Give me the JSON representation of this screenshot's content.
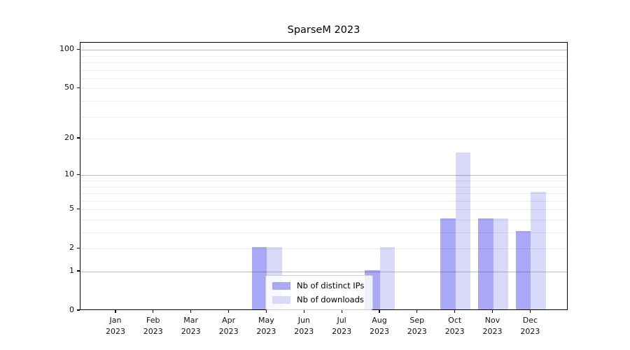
{
  "title": "SparseM 2023",
  "chart_data": {
    "type": "bar",
    "title": "SparseM 2023",
    "categories": [
      "Jan 2023",
      "Feb 2023",
      "Mar 2023",
      "Apr 2023",
      "May 2023",
      "Jun 2023",
      "Jul 2023",
      "Aug 2023",
      "Sep 2023",
      "Oct 2023",
      "Nov 2023",
      "Dec 2023"
    ],
    "series": [
      {
        "name": "Nb of distinct IPs",
        "color": "#a9a9f7",
        "values": [
          0,
          0,
          0,
          0,
          2,
          0,
          0,
          1,
          0,
          4,
          4,
          3
        ]
      },
      {
        "name": "Nb of downloads",
        "color": "#d9d9f9",
        "values": [
          0,
          0,
          0,
          0,
          2,
          0,
          0,
          2,
          0,
          15,
          4,
          7
        ]
      }
    ],
    "xlabel": "",
    "ylabel": "",
    "yscale": "log1p",
    "ylim": [
      0,
      113
    ],
    "yticks": [
      0,
      1,
      2,
      5,
      10,
      20,
      50,
      100
    ],
    "grid_major": [
      1,
      10,
      100
    ],
    "grid_minor": [
      2,
      3,
      4,
      5,
      6,
      7,
      8,
      9,
      20,
      30,
      40,
      50,
      60,
      70,
      80,
      90
    ],
    "grid": "on",
    "legend_position": "lower center"
  }
}
